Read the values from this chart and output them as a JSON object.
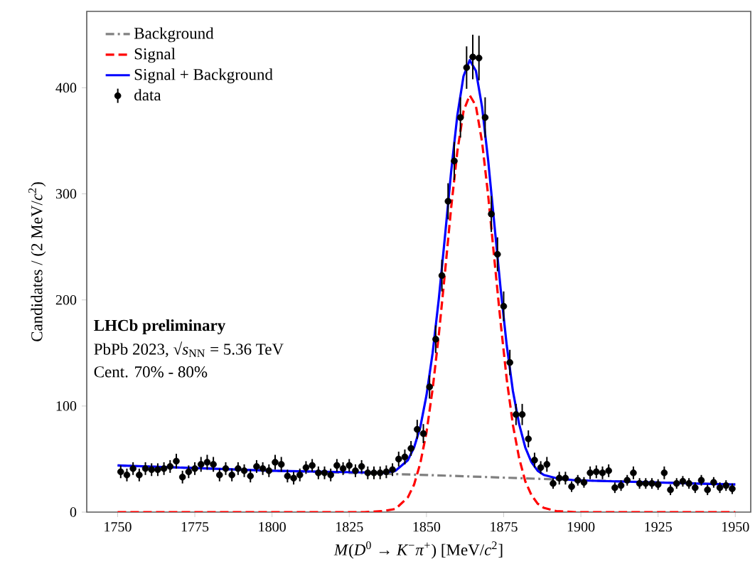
{
  "chart_data": {
    "type": "line",
    "xlabel": "*M*(*D*$^{0}$ → *K*$^{−}$*π*$^{+}$) [MeV/*c*$^{2}$]",
    "ylabel": "Candidates / (2 MeV/*c*$^{2}$)",
    "xlim": [
      1740,
      1955
    ],
    "ylim": [
      0,
      472
    ],
    "xticks": [
      1750,
      1775,
      1800,
      1825,
      1850,
      1875,
      1900,
      1925,
      1950
    ],
    "yticks": [
      0,
      100,
      200,
      300,
      400
    ],
    "legend": "top left",
    "annotations": [
      "**LHCb preliminary**",
      "PbPb 2023, √*s*$_{NN}$ = 5.36 TeV",
      "Cent. 70% - 80%"
    ],
    "series": [
      {
        "name": "Background",
        "color": "#808080",
        "line_style": "dashdot",
        "x": [
          1750,
          1800,
          1850,
          1900,
          1950
        ],
        "values": [
          44,
          39,
          35,
          30,
          26
        ]
      },
      {
        "name": "Signal",
        "color": "#ff0000",
        "line_style": "dashed",
        "x": [
          1750,
          1830,
          1836,
          1840,
          1844,
          1846,
          1848,
          1850,
          1852,
          1854,
          1856,
          1858,
          1860,
          1862,
          1864,
          1866,
          1868,
          1870,
          1872,
          1874,
          1876,
          1878,
          1880,
          1882,
          1884,
          1886,
          1888,
          1892,
          1898,
          1950
        ],
        "values": [
          0,
          0,
          1,
          3,
          14,
          26,
          46,
          75,
          116,
          167,
          226,
          287,
          340,
          378,
          393,
          383,
          349,
          298,
          238,
          179,
          125,
          82,
          51,
          29,
          16,
          8,
          4,
          1,
          0,
          0
        ]
      },
      {
        "name": "Signal + Background",
        "color": "#0000ff",
        "line_style": "solid",
        "x": [
          1750,
          1800,
          1836,
          1840,
          1844,
          1846,
          1848,
          1850,
          1852,
          1854,
          1856,
          1858,
          1860,
          1862,
          1864,
          1866,
          1868,
          1870,
          1872,
          1874,
          1876,
          1878,
          1880,
          1882,
          1884,
          1886,
          1888,
          1892,
          1898,
          1950
        ],
        "values": [
          44,
          39,
          37,
          39,
          49,
          61,
          80,
          110,
          150,
          201,
          260,
          321,
          374,
          411,
          426,
          416,
          382,
          331,
          271,
          211,
          157,
          114,
          83,
          61,
          47,
          39,
          35,
          32,
          30,
          26
        ]
      },
      {
        "name": "data",
        "type": "scatter",
        "color": "#000000",
        "marker": "circle",
        "x": [
          1751,
          1753,
          1755,
          1757,
          1759,
          1761,
          1763,
          1765,
          1767,
          1769,
          1771,
          1773,
          1775,
          1777,
          1779,
          1781,
          1783,
          1785,
          1787,
          1789,
          1791,
          1793,
          1795,
          1797,
          1799,
          1801,
          1803,
          1805,
          1807,
          1809,
          1811,
          1813,
          1815,
          1817,
          1819,
          1821,
          1823,
          1825,
          1827,
          1829,
          1831,
          1833,
          1835,
          1837,
          1839,
          1841,
          1843,
          1845,
          1847,
          1849,
          1851,
          1853,
          1855,
          1857,
          1859,
          1861,
          1863,
          1865,
          1867,
          1869,
          1871,
          1873,
          1875,
          1877,
          1879,
          1881,
          1883,
          1885,
          1887,
          1889,
          1891,
          1893,
          1895,
          1897,
          1899,
          1901,
          1903,
          1905,
          1907,
          1909,
          1911,
          1913,
          1915,
          1917,
          1919,
          1921,
          1923,
          1925,
          1927,
          1929,
          1931,
          1933,
          1935,
          1937,
          1939,
          1941,
          1943,
          1945,
          1947,
          1949
        ],
        "values": [
          38,
          35,
          41,
          35,
          41,
          40,
          40,
          41,
          43,
          48,
          33,
          38,
          41,
          45,
          47,
          45,
          35,
          41,
          35,
          41,
          39,
          34,
          43,
          41,
          39,
          47,
          45,
          34,
          32,
          35,
          42,
          44,
          37,
          37,
          35,
          44,
          41,
          44,
          39,
          43,
          37,
          37,
          37,
          38,
          40,
          50,
          52,
          60,
          78,
          74,
          118,
          163,
          223,
          293,
          331,
          372,
          419,
          429,
          428,
          372,
          281,
          243,
          194,
          141,
          92,
          92,
          69,
          49,
          42,
          45,
          27,
          32,
          32,
          24,
          30,
          28,
          37,
          38,
          37,
          39,
          23,
          25,
          30,
          37,
          27,
          27,
          27,
          26,
          37,
          21,
          27,
          29,
          27,
          23,
          30,
          21,
          28,
          23,
          25,
          22
        ],
        "errors": [
          6,
          6,
          6,
          6,
          6,
          6,
          6,
          6,
          6,
          7,
          6,
          6,
          6,
          7,
          7,
          7,
          6,
          6,
          6,
          6,
          6,
          6,
          6,
          6,
          6,
          7,
          7,
          6,
          6,
          6,
          6,
          6,
          6,
          6,
          6,
          6,
          6,
          6,
          6,
          6,
          6,
          6,
          6,
          6,
          6,
          7,
          7,
          7,
          9,
          9,
          11,
          13,
          15,
          17,
          18,
          19,
          20,
          21,
          21,
          19,
          17,
          16,
          14,
          12,
          10,
          10,
          8,
          7,
          6,
          7,
          5,
          6,
          6,
          5,
          5,
          5,
          6,
          6,
          6,
          6,
          5,
          5,
          5,
          6,
          5,
          5,
          5,
          5,
          6,
          5,
          5,
          5,
          5,
          5,
          5,
          5,
          5,
          5,
          5,
          5
        ]
      }
    ]
  }
}
